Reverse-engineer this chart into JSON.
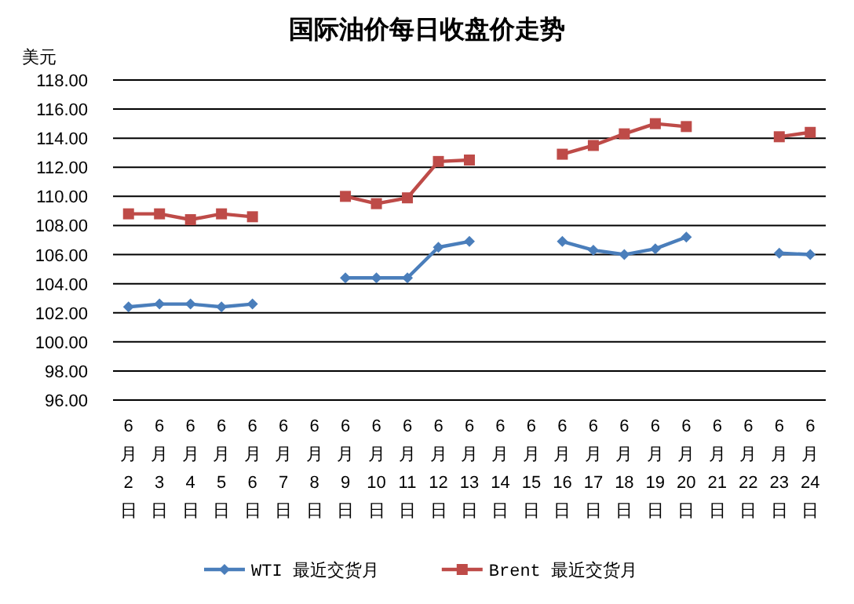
{
  "chart_data": {
    "type": "line",
    "title": "国际油价每日收盘价走势",
    "ylabel": "美元",
    "categories": [
      "6月2日",
      "6月3日",
      "6月4日",
      "6月5日",
      "6月6日",
      "6月7日",
      "6月8日",
      "6月9日",
      "6月10日",
      "6月11日",
      "6月12日",
      "6月13日",
      "6月14日",
      "6月15日",
      "6月16日",
      "6月17日",
      "6月18日",
      "6月19日",
      "6月20日",
      "6月21日",
      "6月22日",
      "6月23日",
      "6月24日"
    ],
    "series": [
      {
        "name": "WTI 最近交货月",
        "color": "#4a7ebb",
        "marker": "diamond",
        "values": [
          102.4,
          102.6,
          102.6,
          102.4,
          102.6,
          null,
          null,
          104.4,
          104.4,
          104.4,
          106.5,
          106.9,
          null,
          null,
          106.9,
          106.3,
          106.0,
          106.4,
          107.2,
          null,
          null,
          106.1,
          106.0
        ]
      },
      {
        "name": "Brent 最近交货月",
        "color": "#be4b48",
        "marker": "square",
        "values": [
          108.8,
          108.8,
          108.4,
          108.8,
          108.6,
          null,
          null,
          110.0,
          109.5,
          109.9,
          112.4,
          112.5,
          null,
          null,
          112.9,
          113.5,
          114.3,
          115.0,
          114.8,
          null,
          null,
          114.1,
          114.4
        ]
      }
    ],
    "ylim": [
      96,
      118
    ],
    "yticks": [
      {
        "value": 96,
        "label": "96.00"
      },
      {
        "value": 98,
        "label": "98.00"
      },
      {
        "value": 100,
        "label": "100.00"
      },
      {
        "value": 102,
        "label": "102.00"
      },
      {
        "value": 104,
        "label": "104.00"
      },
      {
        "value": 106,
        "label": "106.00"
      },
      {
        "value": 108,
        "label": "108.00"
      },
      {
        "value": 110,
        "label": "110.00"
      },
      {
        "value": 112,
        "label": "112.00"
      },
      {
        "value": 114,
        "label": "114.00"
      },
      {
        "value": 116,
        "label": "116.00"
      },
      {
        "value": 118,
        "label": "118.00"
      }
    ],
    "grid": "y",
    "legend": "bottom"
  }
}
